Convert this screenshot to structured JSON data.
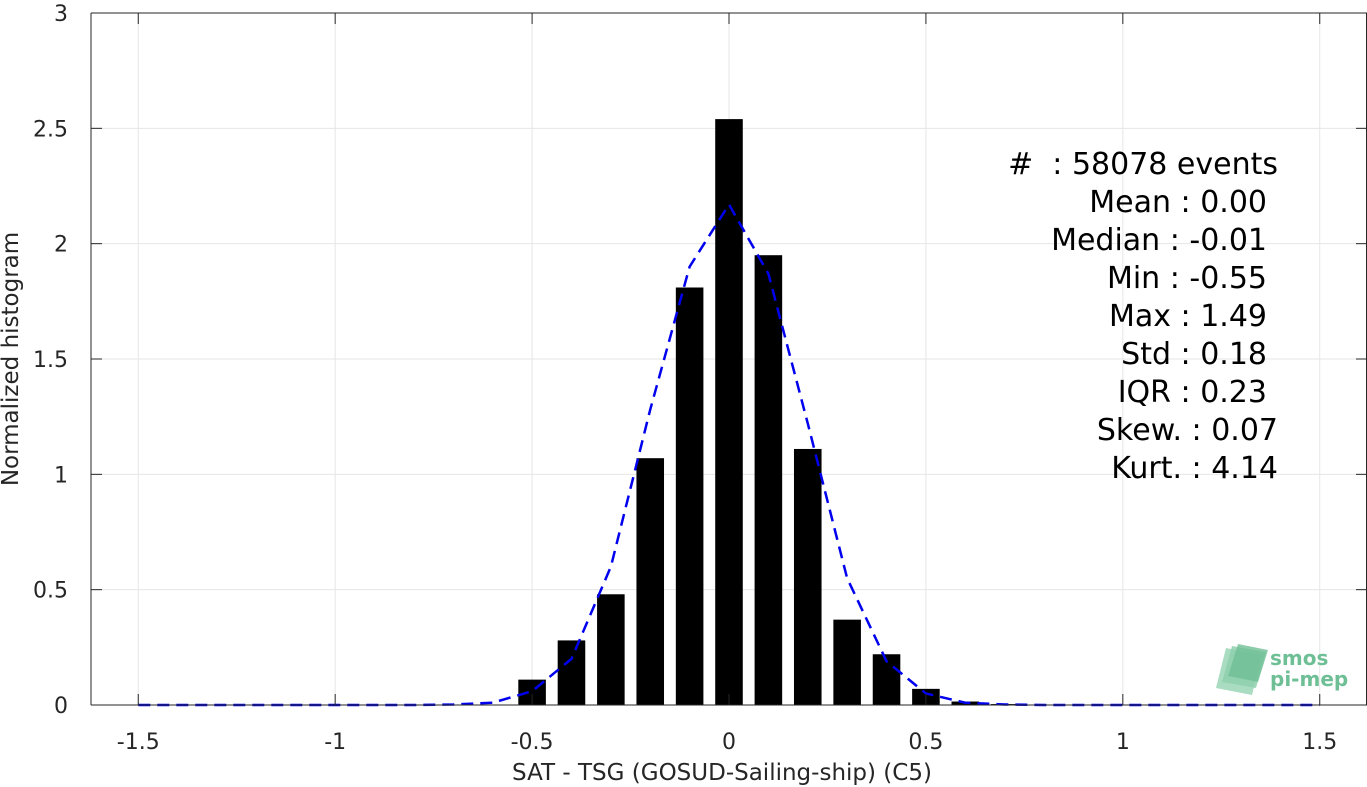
{
  "chart_data": {
    "type": "bar",
    "xlabel": "SAT - TSG (GOSUD-Sailing-ship) (C5)",
    "ylabel": "Normalized histogram",
    "xlim": [
      -1.62,
      1.62
    ],
    "ylim": [
      0,
      3
    ],
    "xticks": [
      -1.5,
      -1,
      -0.5,
      0,
      0.5,
      1,
      1.5
    ],
    "xtick_labels": [
      "-1.5",
      "-1",
      "-0.5",
      "0",
      "0.5",
      "1",
      "1.5"
    ],
    "yticks": [
      0,
      0.5,
      1,
      1.5,
      2,
      2.5,
      3
    ],
    "ytick_labels": [
      "0",
      "0.5",
      "1",
      "1.5",
      "2",
      "2.5",
      "3"
    ],
    "grid": true,
    "bar_color": "#000000",
    "bar_width": 0.07,
    "x": [
      -1.5,
      -1.4,
      -1.3,
      -1.2,
      -1.1,
      -1.0,
      -0.9,
      -0.8,
      -0.7,
      -0.6,
      -0.5,
      -0.4,
      -0.3,
      -0.2,
      -0.1,
      0.0,
      0.1,
      0.2,
      0.3,
      0.4,
      0.5,
      0.6,
      0.7,
      0.8,
      0.9,
      1.0,
      1.1,
      1.2,
      1.3,
      1.4,
      1.5
    ],
    "values": [
      0,
      0,
      0,
      0,
      0,
      0,
      0,
      0,
      0,
      0,
      0.11,
      0.28,
      0.48,
      1.07,
      1.81,
      2.54,
      1.95,
      1.11,
      0.37,
      0.22,
      0.07,
      0.015,
      0.004,
      0.002,
      0.001,
      0.001,
      0.001,
      0.001,
      0.001,
      0.001,
      0.001
    ],
    "fit_line": {
      "color": "#0000ee",
      "style": "dashed",
      "x": [
        -1.5,
        -1.4,
        -1.3,
        -1.2,
        -1.1,
        -1.0,
        -0.9,
        -0.8,
        -0.7,
        -0.6,
        -0.5,
        -0.4,
        -0.3,
        -0.2,
        -0.1,
        0.0,
        0.1,
        0.2,
        0.3,
        0.4,
        0.5,
        0.6,
        0.7,
        0.8,
        0.9,
        1.0,
        1.1,
        1.2,
        1.3,
        1.4,
        1.5
      ],
      "y": [
        0,
        0,
        0,
        0,
        0,
        0,
        0,
        0,
        0.002,
        0.01,
        0.06,
        0.2,
        0.6,
        1.28,
        1.9,
        2.17,
        1.87,
        1.22,
        0.55,
        0.19,
        0.05,
        0.01,
        0.002,
        0,
        0,
        0,
        0,
        0,
        0,
        0,
        0
      ]
    }
  },
  "stats": [
    "#  : 58078 events",
    "Mean : 0.00",
    "Median : -0.01",
    "Min : -0.55",
    "Max : 1.49",
    "Std : 0.18",
    "IQR : 0.23",
    "Skew. : 0.07",
    "Kurt. : 4.14"
  ],
  "logo": {
    "line1": "smos",
    "line2": "pi-mep",
    "color": "#6fbf96"
  }
}
